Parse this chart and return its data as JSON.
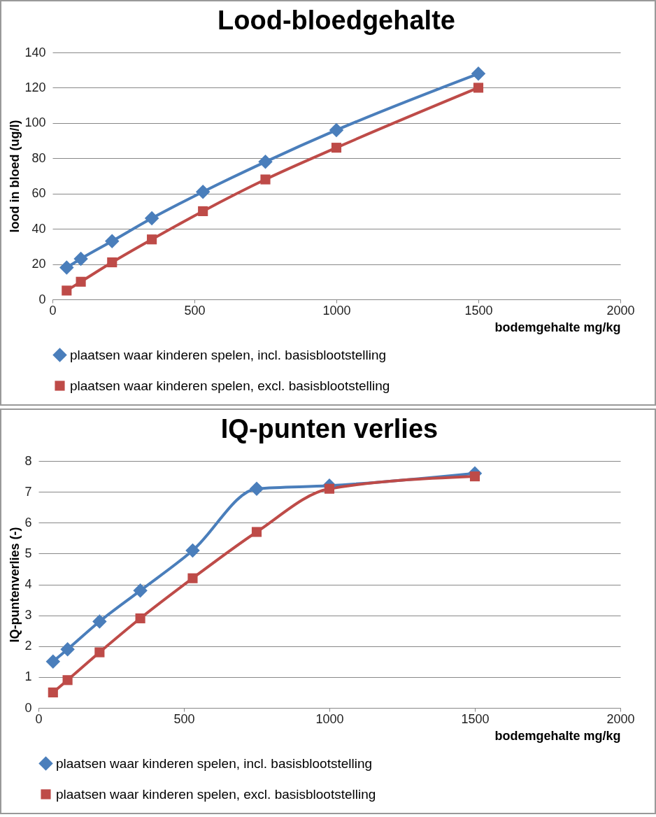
{
  "chart_data": [
    {
      "type": "line",
      "title": "Lood-bloedgehalte",
      "xlabel": "bodemgehalte mg/kg",
      "ylabel": "lood in bloed (ug/l)",
      "x": [
        50,
        100,
        210,
        350,
        530,
        750,
        1000,
        1500
      ],
      "series": [
        {
          "name": "plaatsen waar kinderen spelen, incl. basisblootstelling",
          "color": "#4a7ebb",
          "marker": "diamond",
          "values": [
            18,
            23,
            33,
            46,
            61,
            78,
            96,
            128
          ]
        },
        {
          "name": "plaatsen waar kinderen spelen, excl. basisblootstelling",
          "color": "#be4b48",
          "marker": "square",
          "values": [
            5,
            10,
            21,
            34,
            50,
            68,
            86,
            120
          ]
        }
      ],
      "xlim": [
        0,
        2000
      ],
      "xticks": [
        0,
        500,
        1000,
        1500,
        2000
      ],
      "ylim": [
        0,
        140
      ],
      "yticks": [
        0,
        20,
        40,
        60,
        80,
        100,
        120,
        140
      ],
      "grid": "y",
      "legend": "bottom"
    },
    {
      "type": "line",
      "title": "IQ-punten verlies",
      "xlabel": "bodemgehalte mg/kg",
      "ylabel": "IQ-puntenverlies (-)",
      "x": [
        50,
        100,
        210,
        350,
        530,
        750,
        1000,
        1500
      ],
      "series": [
        {
          "name": "plaatsen waar kinderen spelen, incl. basisblootstelling",
          "color": "#4a7ebb",
          "marker": "diamond",
          "values": [
            1.5,
            1.9,
            2.8,
            3.8,
            5.1,
            7.1,
            7.2,
            7.6
          ]
        },
        {
          "name": "plaatsen waar kinderen spelen, excl. basisblootstelling",
          "color": "#be4b48",
          "marker": "square",
          "values": [
            0.5,
            0.9,
            1.8,
            2.9,
            4.2,
            5.7,
            7.1,
            7.5
          ]
        }
      ],
      "xlim": [
        0,
        2000
      ],
      "xticks": [
        0,
        500,
        1000,
        1500,
        2000
      ],
      "ylim": [
        0,
        8
      ],
      "yticks": [
        0,
        1,
        2,
        3,
        4,
        5,
        6,
        7,
        8
      ],
      "grid": "y",
      "legend": "bottom"
    }
  ]
}
